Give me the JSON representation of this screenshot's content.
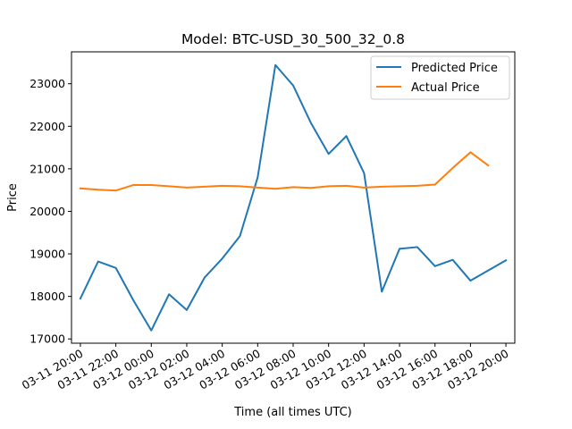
{
  "chart_data": {
    "type": "line",
    "title": "Model: BTC-USD_30_500_32_0.8",
    "xlabel": "Time (all times UTC)",
    "ylabel": "Price",
    "x_unit": "hours",
    "xlim": [
      -0.5,
      24.5
    ],
    "ylim": [
      16900,
      23750
    ],
    "xticks": [
      0,
      2,
      4,
      6,
      8,
      10,
      12,
      14,
      16,
      18,
      20,
      22,
      24
    ],
    "xtick_labels": [
      "03-11 20:00",
      "03-11 22:00",
      "03-12 00:00",
      "03-12 02:00",
      "03-12 04:00",
      "03-12 06:00",
      "03-12 08:00",
      "03-12 10:00",
      "03-12 12:00",
      "03-12 14:00",
      "03-12 16:00",
      "03-12 18:00",
      "03-12 20:00"
    ],
    "yticks": [
      17000,
      18000,
      19000,
      20000,
      21000,
      22000,
      23000
    ],
    "ytick_labels": [
      "17000",
      "18000",
      "19000",
      "20000",
      "21000",
      "22000",
      "23000"
    ],
    "grid": false,
    "legend_position": "top-right",
    "series": [
      {
        "name": "Predicted Price",
        "color": "#1f77b4",
        "x": [
          0,
          1,
          2,
          3,
          4,
          5,
          6,
          7,
          8,
          9,
          10,
          11,
          12,
          13,
          14,
          15,
          16,
          17,
          18,
          19,
          20,
          21,
          22,
          23,
          24
        ],
        "values": [
          17950,
          18820,
          18670,
          17900,
          17200,
          18050,
          17680,
          18440,
          18890,
          19420,
          20800,
          23440,
          22960,
          22080,
          21350,
          21770,
          20900,
          18110,
          19120,
          19160,
          18710,
          18860,
          18370,
          18610,
          18850
        ]
      },
      {
        "name": "Actual Price",
        "color": "#ff7f0e",
        "x": [
          0,
          1,
          2,
          3,
          4,
          5,
          6,
          7,
          8,
          9,
          10,
          11,
          12,
          13,
          14,
          15,
          16,
          17,
          18,
          19,
          20,
          21,
          22,
          23
        ],
        "values": [
          20540,
          20510,
          20490,
          20620,
          20620,
          20590,
          20560,
          20580,
          20600,
          20590,
          20560,
          20530,
          20570,
          20550,
          20590,
          20600,
          20560,
          20580,
          20590,
          20600,
          20630,
          21020,
          21390,
          21080
        ]
      }
    ]
  }
}
